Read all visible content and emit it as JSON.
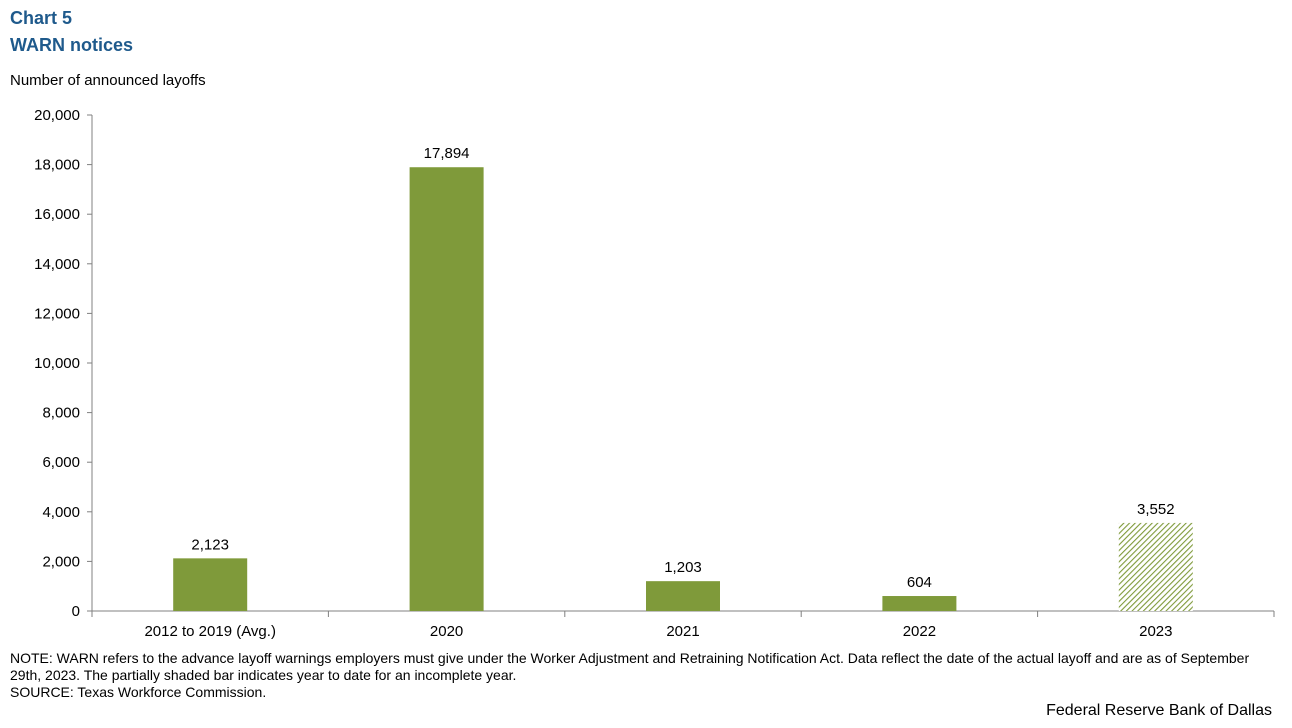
{
  "header": {
    "chart_number": "Chart 5",
    "title": "WARN notices"
  },
  "footer": {
    "note": "NOTE: WARN refers to the advance layoff warnings employers must give under the Worker Adjustment and Retraining Notification Act. Data reflect the date of the actual layoff and are as of September 29th, 2023. The partially shaded bar indicates year to date for an incomplete year.",
    "source": "SOURCE: Texas Workforce Commission.",
    "credit": "Federal Reserve Bank of Dallas"
  },
  "colors": {
    "bar": "#7f9a3a",
    "bar_hatch_background": "#ffffff",
    "title": "#1f5a8c",
    "axis": "#808080"
  },
  "chart_data": {
    "type": "bar",
    "title": "WARN notices",
    "ylabel": "Number of announced layoffs",
    "xlabel": "",
    "categories": [
      "2012 to 2019 (Avg.)",
      "2020",
      "2021",
      "2022",
      "2023"
    ],
    "values": [
      2123,
      17894,
      1203,
      604,
      3552
    ],
    "value_labels": [
      "2,123",
      "17,894",
      "1,203",
      "604",
      "3,552"
    ],
    "hatched": [
      false,
      false,
      false,
      false,
      true
    ],
    "ylim": [
      0,
      20000
    ],
    "yticks": [
      0,
      2000,
      4000,
      6000,
      8000,
      10000,
      12000,
      14000,
      16000,
      18000,
      20000
    ],
    "ytick_labels": [
      "0",
      "2,000",
      "4,000",
      "6,000",
      "8,000",
      "10,000",
      "12,000",
      "14,000",
      "16,000",
      "18,000",
      "20,000"
    ],
    "grid": false,
    "legend": "none"
  }
}
